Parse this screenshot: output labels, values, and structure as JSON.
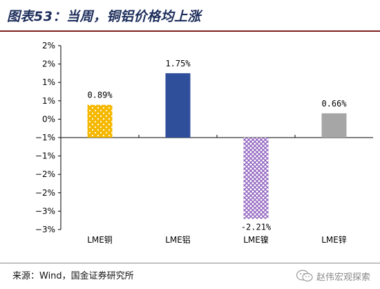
{
  "title": "图表53：当周，铜铝价格均上涨",
  "source": "来源：Wind，国金证券研究所",
  "watermark": "赵伟宏观探索",
  "chart_data": {
    "type": "bar",
    "categories": [
      "LME铜",
      "LME铝",
      "LME镍",
      "LME锌"
    ],
    "values": [
      0.89,
      1.75,
      -2.21,
      0.66
    ],
    "value_labels": [
      "0.89%",
      "1.75%",
      "-2.21%",
      "0.66%"
    ],
    "tick_labels": [
      "2%",
      "2%",
      "1%",
      "1%",
      "0%",
      "−1%",
      "−1%",
      "−2%",
      "−2%",
      "−3%",
      "−3%"
    ],
    "ylim": [
      -2.5,
      2.5
    ],
    "grid": false,
    "legend": "none",
    "colors": [
      "#f5b800",
      "#2f4f9a",
      "#8e5fbf",
      "#a6a6a6"
    ]
  }
}
